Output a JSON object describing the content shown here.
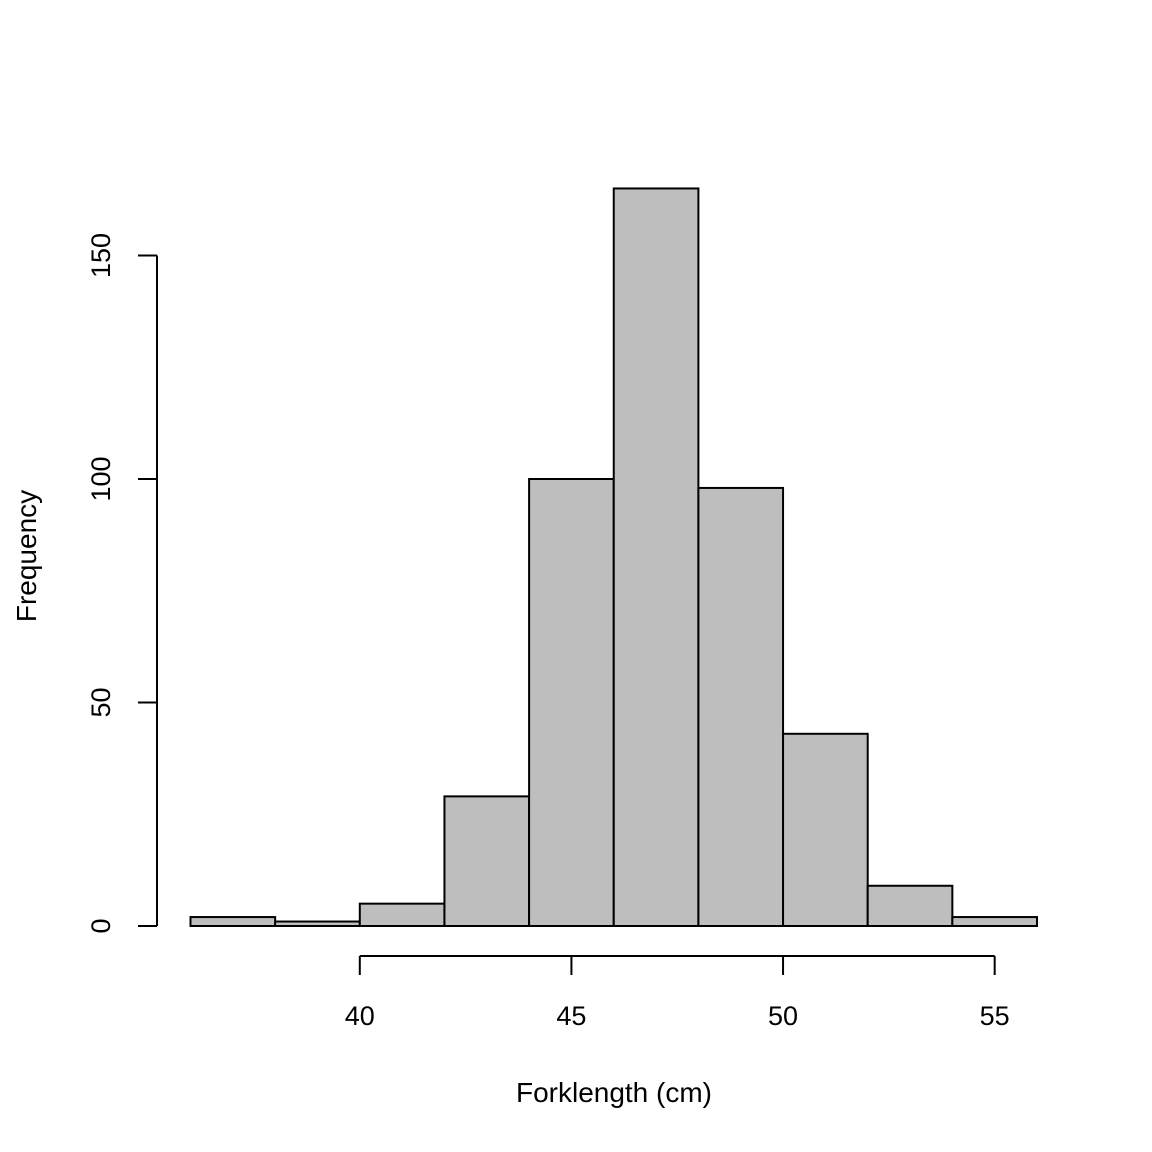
{
  "chart_data": {
    "type": "bar",
    "title": "",
    "xlabel": "Forklength (cm)",
    "ylabel": "Frequency",
    "bin_edges": [
      36,
      38,
      40,
      42,
      44,
      46,
      48,
      50,
      52,
      54,
      56
    ],
    "values": [
      2,
      1,
      5,
      29,
      100,
      165,
      98,
      43,
      9,
      2
    ],
    "xlim": [
      36,
      56
    ],
    "ylim": [
      0,
      165
    ],
    "x_ticks": [
      40,
      45,
      50,
      55
    ],
    "y_ticks": [
      0,
      50,
      100,
      150
    ],
    "grid": false,
    "colors": {
      "bar_fill": "#bebebe",
      "bar_stroke": "#000000"
    }
  }
}
